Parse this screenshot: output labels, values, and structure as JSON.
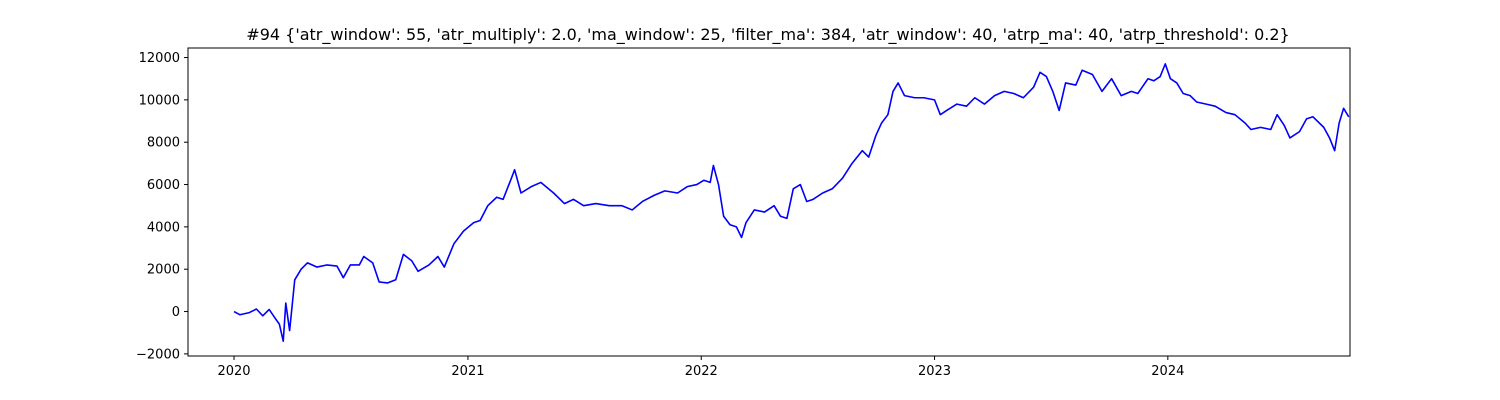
{
  "chart_data": {
    "type": "line",
    "title": "#94 {'atr_window': 55, 'atr_multiply': 2.0, 'ma_window': 25, 'filter_ma': 384, 'atr_window': 40, 'atrp_ma': 40, 'atrp_threshold': 0.2}",
    "xlabel": "",
    "ylabel": "",
    "x_ticks": [
      "2020",
      "2021",
      "2022",
      "2023",
      "2024"
    ],
    "y_ticks": [
      "−2000",
      "0",
      "2000",
      "4000",
      "6000",
      "8000",
      "10000",
      "12000"
    ],
    "xlim": [
      "2019-10-21",
      "2024-10-12"
    ],
    "ylim": [
      -2100,
      12450
    ],
    "grid": false,
    "series": [
      {
        "color": "#0000ff",
        "points": [
          [
            "2020-01-01",
            0
          ],
          [
            "2020-01-10",
            -150
          ],
          [
            "2020-01-25",
            -50
          ],
          [
            "2020-02-05",
            120
          ],
          [
            "2020-02-15",
            -200
          ],
          [
            "2020-02-25",
            100
          ],
          [
            "2020-03-05",
            -300
          ],
          [
            "2020-03-12",
            -600
          ],
          [
            "2020-03-18",
            -1400
          ],
          [
            "2020-03-22",
            400
          ],
          [
            "2020-03-28",
            -900
          ],
          [
            "2020-04-05",
            1500
          ],
          [
            "2020-04-15",
            2000
          ],
          [
            "2020-04-25",
            2300
          ],
          [
            "2020-05-10",
            2100
          ],
          [
            "2020-05-25",
            2200
          ],
          [
            "2020-06-10",
            2150
          ],
          [
            "2020-06-20",
            1600
          ],
          [
            "2020-07-01",
            2200
          ],
          [
            "2020-07-15",
            2200
          ],
          [
            "2020-07-22",
            2600
          ],
          [
            "2020-08-05",
            2300
          ],
          [
            "2020-08-15",
            1400
          ],
          [
            "2020-08-28",
            1350
          ],
          [
            "2020-09-10",
            1500
          ],
          [
            "2020-09-22",
            2700
          ],
          [
            "2020-10-05",
            2400
          ],
          [
            "2020-10-15",
            1900
          ],
          [
            "2020-11-01",
            2200
          ],
          [
            "2020-11-15",
            2600
          ],
          [
            "2020-11-25",
            2100
          ],
          [
            "2020-12-10",
            3200
          ],
          [
            "2020-12-25",
            3800
          ],
          [
            "2021-01-10",
            4200
          ],
          [
            "2021-01-20",
            4300
          ],
          [
            "2021-02-01",
            5000
          ],
          [
            "2021-02-15",
            5400
          ],
          [
            "2021-02-25",
            5300
          ],
          [
            "2021-03-10",
            6300
          ],
          [
            "2021-03-15",
            6700
          ],
          [
            "2021-03-25",
            5600
          ],
          [
            "2021-04-10",
            5900
          ],
          [
            "2021-04-25",
            6100
          ],
          [
            "2021-05-15",
            5600
          ],
          [
            "2021-06-01",
            5100
          ],
          [
            "2021-06-15",
            5300
          ],
          [
            "2021-07-01",
            5000
          ],
          [
            "2021-07-20",
            5100
          ],
          [
            "2021-08-10",
            5000
          ],
          [
            "2021-08-30",
            5000
          ],
          [
            "2021-09-15",
            4800
          ],
          [
            "2021-10-01",
            5200
          ],
          [
            "2021-10-20",
            5500
          ],
          [
            "2021-11-05",
            5700
          ],
          [
            "2021-11-25",
            5600
          ],
          [
            "2021-12-10",
            5900
          ],
          [
            "2021-12-25",
            6000
          ],
          [
            "2022-01-05",
            6200
          ],
          [
            "2022-01-15",
            6100
          ],
          [
            "2022-01-20",
            6900
          ],
          [
            "2022-01-28",
            6000
          ],
          [
            "2022-02-05",
            4500
          ],
          [
            "2022-02-15",
            4100
          ],
          [
            "2022-02-25",
            4000
          ],
          [
            "2022-03-05",
            3500
          ],
          [
            "2022-03-12",
            4200
          ],
          [
            "2022-03-25",
            4800
          ],
          [
            "2022-04-10",
            4700
          ],
          [
            "2022-04-25",
            5000
          ],
          [
            "2022-05-05",
            4500
          ],
          [
            "2022-05-15",
            4400
          ],
          [
            "2022-05-25",
            5800
          ],
          [
            "2022-06-05",
            6000
          ],
          [
            "2022-06-15",
            5200
          ],
          [
            "2022-06-25",
            5300
          ],
          [
            "2022-07-10",
            5600
          ],
          [
            "2022-07-25",
            5800
          ],
          [
            "2022-08-10",
            6300
          ],
          [
            "2022-08-25",
            7000
          ],
          [
            "2022-09-10",
            7600
          ],
          [
            "2022-09-20",
            7300
          ],
          [
            "2022-10-01",
            8300
          ],
          [
            "2022-10-10",
            8900
          ],
          [
            "2022-10-20",
            9300
          ],
          [
            "2022-10-28",
            10400
          ],
          [
            "2022-11-05",
            10800
          ],
          [
            "2022-11-15",
            10200
          ],
          [
            "2022-12-01",
            10100
          ],
          [
            "2022-12-15",
            10100
          ],
          [
            "2023-01-01",
            10000
          ],
          [
            "2023-01-10",
            9300
          ],
          [
            "2023-01-20",
            9500
          ],
          [
            "2023-02-05",
            9800
          ],
          [
            "2023-02-20",
            9700
          ],
          [
            "2023-03-05",
            10100
          ],
          [
            "2023-03-20",
            9800
          ],
          [
            "2023-04-05",
            10200
          ],
          [
            "2023-04-20",
            10400
          ],
          [
            "2023-05-05",
            10300
          ],
          [
            "2023-05-20",
            10100
          ],
          [
            "2023-06-05",
            10600
          ],
          [
            "2023-06-15",
            11300
          ],
          [
            "2023-06-25",
            11100
          ],
          [
            "2023-07-05",
            10400
          ],
          [
            "2023-07-15",
            9500
          ],
          [
            "2023-07-25",
            10800
          ],
          [
            "2023-08-10",
            10700
          ],
          [
            "2023-08-20",
            11400
          ],
          [
            "2023-09-05",
            11200
          ],
          [
            "2023-09-20",
            10400
          ],
          [
            "2023-10-05",
            11000
          ],
          [
            "2023-10-20",
            10200
          ],
          [
            "2023-11-05",
            10400
          ],
          [
            "2023-11-15",
            10300
          ],
          [
            "2023-12-01",
            11000
          ],
          [
            "2023-12-10",
            10900
          ],
          [
            "2023-12-20",
            11100
          ],
          [
            "2023-12-28",
            11700
          ],
          [
            "2024-01-05",
            11000
          ],
          [
            "2024-01-15",
            10800
          ],
          [
            "2024-01-25",
            10300
          ],
          [
            "2024-02-05",
            10200
          ],
          [
            "2024-02-15",
            9900
          ],
          [
            "2024-03-01",
            9800
          ],
          [
            "2024-03-15",
            9700
          ],
          [
            "2024-04-01",
            9400
          ],
          [
            "2024-04-15",
            9300
          ],
          [
            "2024-05-01",
            8900
          ],
          [
            "2024-05-10",
            8600
          ],
          [
            "2024-05-25",
            8700
          ],
          [
            "2024-06-10",
            8600
          ],
          [
            "2024-06-20",
            9300
          ],
          [
            "2024-07-01",
            8800
          ],
          [
            "2024-07-10",
            8200
          ],
          [
            "2024-07-25",
            8500
          ],
          [
            "2024-08-05",
            9100
          ],
          [
            "2024-08-15",
            9200
          ],
          [
            "2024-09-01",
            8700
          ],
          [
            "2024-09-10",
            8200
          ],
          [
            "2024-09-18",
            7600
          ],
          [
            "2024-09-25",
            8900
          ],
          [
            "2024-10-02",
            9600
          ],
          [
            "2024-10-10",
            9200
          ]
        ]
      }
    ]
  }
}
